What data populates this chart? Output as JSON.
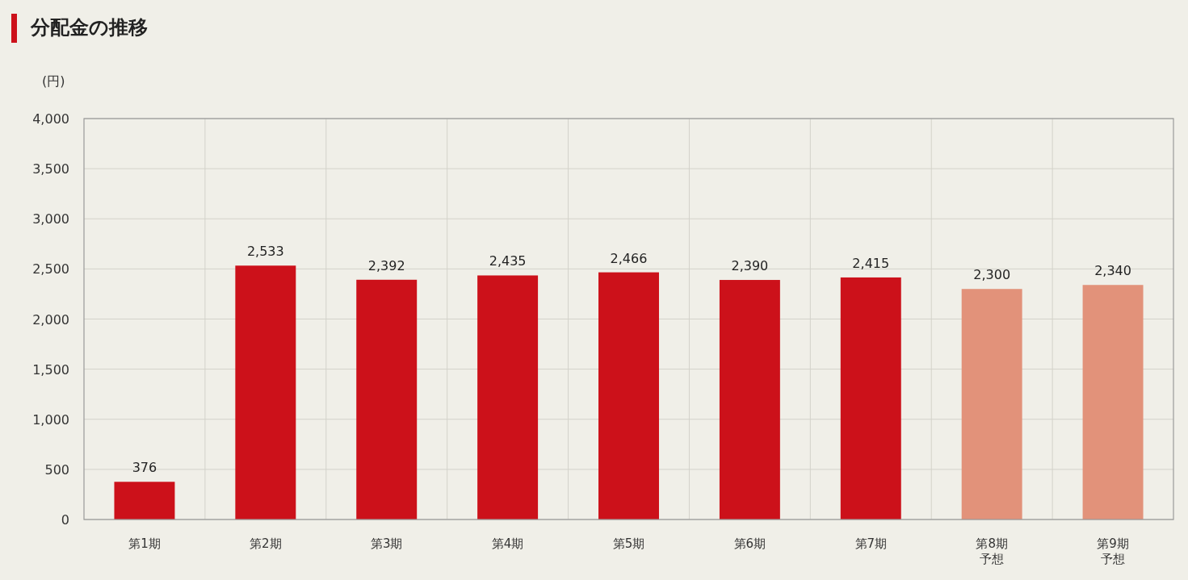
{
  "chart_data": {
    "type": "bar",
    "title": "分配金の推移",
    "ylabel": "(円)",
    "categories": [
      "第1期",
      "第2期",
      "第3期",
      "第4期",
      "第5期",
      "第6期",
      "第7期",
      "第8期予想",
      "第9期予想"
    ],
    "values": [
      376,
      2533,
      2392,
      2435,
      2466,
      2390,
      2415,
      2300,
      2340
    ],
    "value_labels": [
      "376",
      "2,533",
      "2,392",
      "2,435",
      "2,466",
      "2,390",
      "2,415",
      "2,300",
      "2,340"
    ],
    "colors": [
      "#cc111a",
      "#cc111a",
      "#cc111a",
      "#cc111a",
      "#cc111a",
      "#cc111a",
      "#cc111a",
      "#e2927a",
      "#e2927a"
    ],
    "ylim": [
      0,
      4000
    ],
    "yticks": [
      0,
      500,
      {
        "value": 1000,
        "label": "1,000"
      },
      {
        "value": 1500,
        "label": "1,500"
      },
      {
        "value": 2000,
        "label": "2,000"
      },
      {
        "value": 2500,
        "label": "2,500"
      },
      {
        "value": 3000,
        "label": "3,000"
      },
      {
        "value": 3500,
        "label": "3,500"
      },
      {
        "value": 4000,
        "label": "4,000"
      }
    ],
    "grid": true
  }
}
